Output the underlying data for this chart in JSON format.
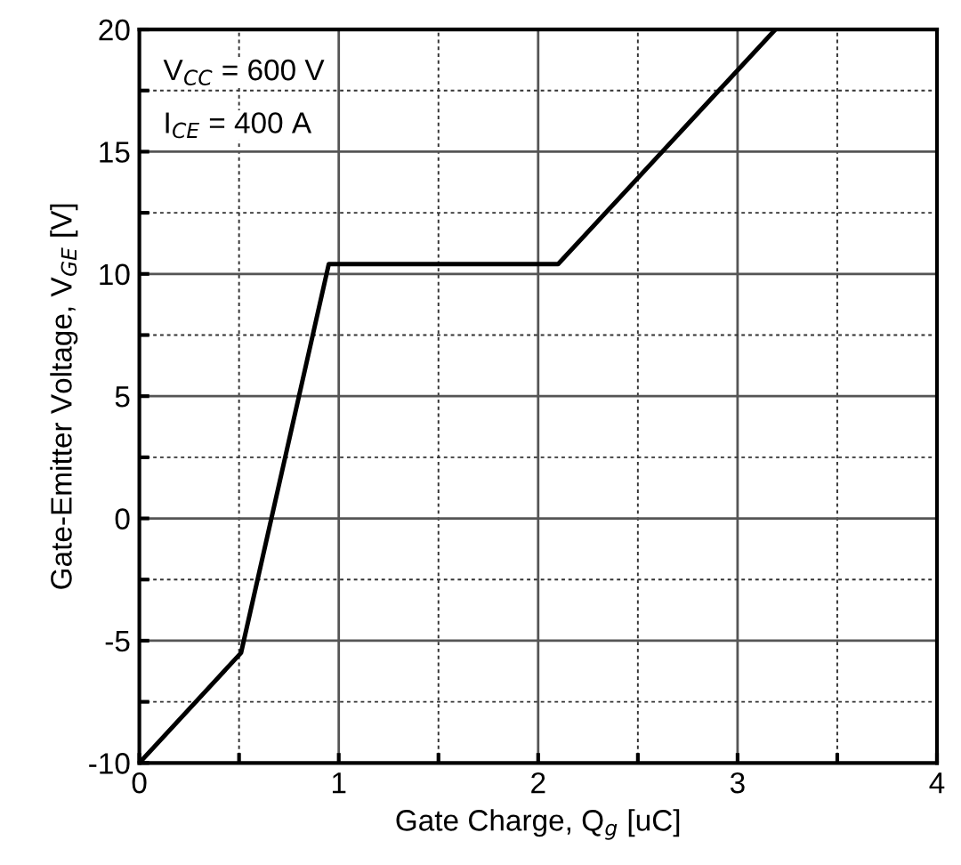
{
  "chart_data": {
    "type": "line",
    "xlabel": "Gate Charge, Q$_{g}$ [uC]",
    "ylabel": "Gate-Emitter Voltage, V$_{GE}$ [V]",
    "x": [
      0,
      0.51,
      0.95,
      2.1,
      3.19
    ],
    "series": [
      {
        "color": "#000000",
        "values": [
          -10,
          -5.5,
          10.4,
          10.4,
          20
        ]
      }
    ],
    "xlim": [
      0,
      4
    ],
    "ylim": [
      -10,
      20
    ],
    "xticks": [
      0,
      {
        "value": 0.5,
        "label": null
      },
      1,
      {
        "value": 1.5,
        "label": null
      },
      2,
      {
        "value": 2.5,
        "label": null
      },
      3,
      {
        "value": 3.5,
        "label": null
      },
      4
    ],
    "yticks": [
      -10,
      {
        "value": -7.5,
        "label": null
      },
      -5,
      {
        "value": -2.5,
        "label": null
      },
      0,
      {
        "value": 2.5,
        "label": null
      },
      5,
      {
        "value": 7.5,
        "label": null
      },
      10,
      {
        "value": 12.5,
        "label": null
      },
      15,
      {
        "value": 17.5,
        "label": null
      },
      20
    ],
    "grid": true,
    "marker": "none",
    "line_style": "solid",
    "annotations": [
      "V$_{CC}$ = 600 V",
      "I$_{CE}$ = 400 A"
    ]
  }
}
